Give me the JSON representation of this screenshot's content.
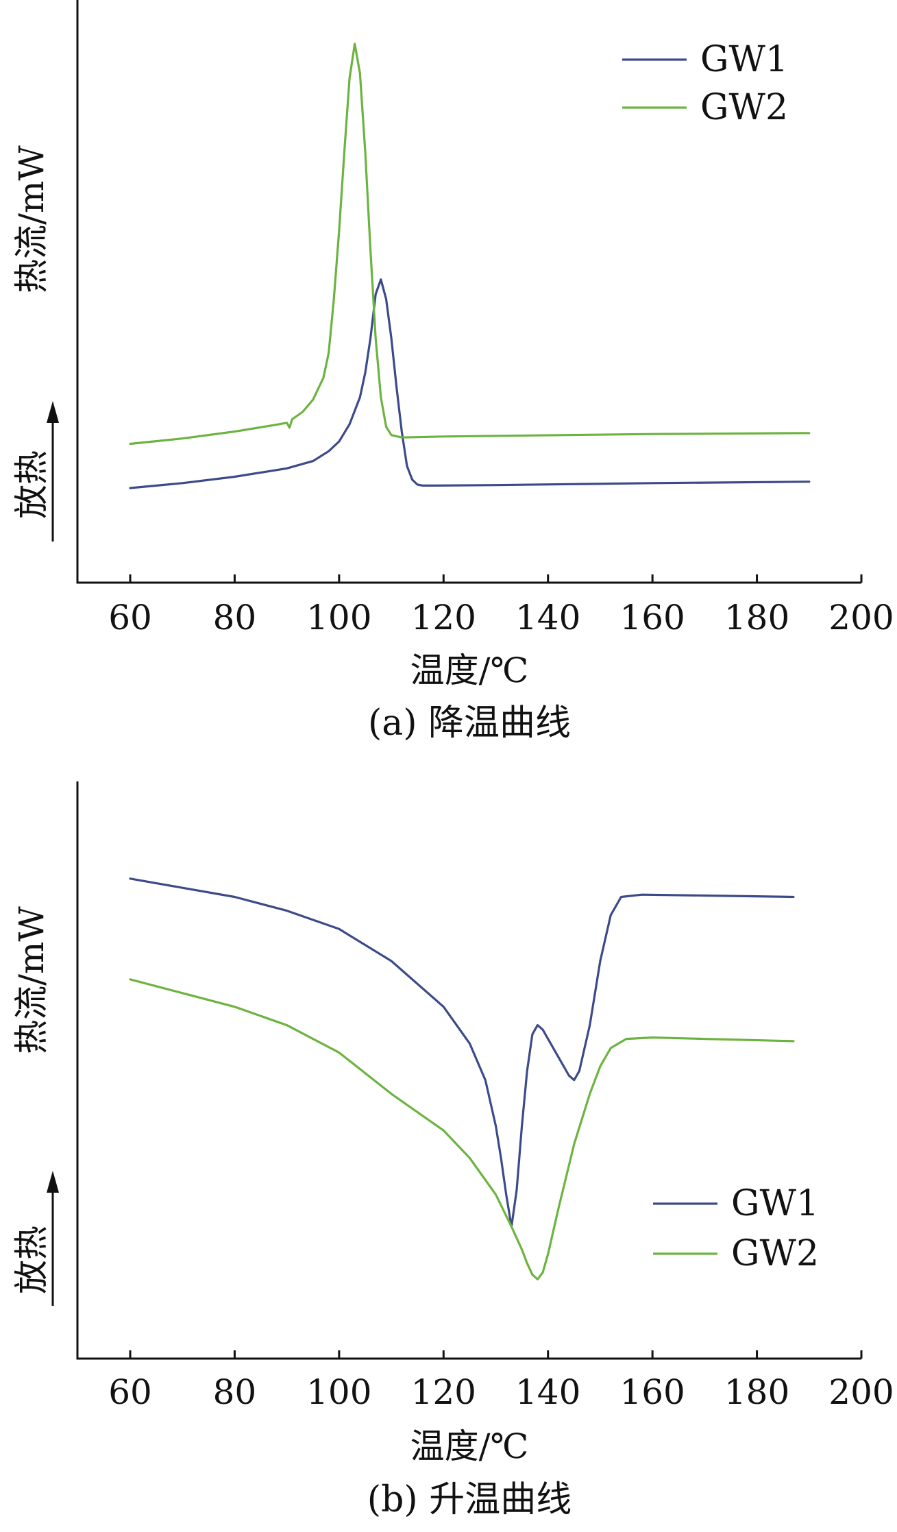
{
  "colors": {
    "GW1": "#3d4a8a",
    "GW2": "#6cb33f",
    "axis": "#111111"
  },
  "chart_data": [
    {
      "type": "line",
      "caption": "(a) 降温曲线",
      "xlabel": "温度/℃",
      "ylabel": "热流/mW",
      "ylabel_arrow": "放热",
      "xlim": [
        50,
        200
      ],
      "ylim": [
        0,
        100
      ],
      "xticks": [
        60,
        80,
        100,
        120,
        140,
        160,
        180,
        200
      ],
      "y_ticks_shown": false,
      "grid": false,
      "legend_position": "top-right",
      "series": [
        {
          "name": "GW1",
          "color": "GW1",
          "x": [
            60,
            70,
            80,
            90,
            95,
            98,
            100,
            102,
            104,
            105,
            106,
            107,
            108,
            109,
            110,
            111,
            112,
            113,
            114,
            115,
            116,
            118,
            130,
            160,
            190
          ],
          "y": [
            9.5,
            10.5,
            11.8,
            13.5,
            15,
            17,
            19,
            22.5,
            28,
            33,
            40,
            49,
            52,
            48,
            40,
            30,
            21,
            14,
            11.2,
            10.2,
            10,
            10,
            10.1,
            10.5,
            10.8
          ]
        },
        {
          "name": "GW2",
          "color": "GW2",
          "x": [
            60,
            70,
            80,
            88,
            90,
            90.5,
            91,
            93,
            95,
            97,
            98,
            99,
            100,
            101,
            102,
            103,
            104,
            105,
            106,
            107,
            108,
            109,
            110,
            112,
            120,
            160,
            190
          ],
          "y": [
            18.5,
            19.6,
            21,
            22.4,
            22.8,
            21.8,
            23.5,
            25,
            27.5,
            32,
            37,
            48,
            62,
            78,
            93,
            100,
            94,
            78,
            58,
            40,
            28,
            22,
            20.3,
            19.8,
            20,
            20.5,
            20.7
          ]
        }
      ]
    },
    {
      "type": "line",
      "caption": "(b) 升温曲线",
      "xlabel": "温度/℃",
      "ylabel": "热流/mW",
      "ylabel_arrow": "放热",
      "xlim": [
        50,
        200
      ],
      "ylim": [
        0,
        100
      ],
      "xticks": [
        60,
        80,
        100,
        120,
        140,
        160,
        180,
        200
      ],
      "y_ticks_shown": false,
      "grid": false,
      "legend_position": "bottom-right",
      "series": [
        {
          "name": "GW1",
          "color": "GW1",
          "x": [
            60,
            70,
            80,
            90,
            100,
            110,
            120,
            125,
            128,
            130,
            131,
            132,
            133,
            134,
            135,
            136,
            137,
            138,
            139,
            140,
            142,
            144,
            145,
            146,
            148,
            150,
            152,
            154,
            158,
            170,
            187
          ],
          "y": [
            90,
            88,
            86,
            83,
            79,
            72,
            62,
            54,
            46,
            36,
            29,
            21,
            14,
            22,
            36,
            48,
            56,
            58,
            57,
            55,
            51,
            47,
            46,
            48,
            58,
            72,
            82,
            86,
            86.5,
            86.3,
            86
          ]
        },
        {
          "name": "GW2",
          "color": "GW2",
          "x": [
            60,
            70,
            80,
            90,
            100,
            110,
            120,
            125,
            130,
            133,
            135,
            136,
            137,
            138,
            139,
            140,
            142,
            145,
            148,
            150,
            152,
            155,
            160,
            170,
            187
          ],
          "y": [
            68,
            65,
            62,
            58,
            52,
            43,
            35,
            29,
            21,
            14,
            9,
            6,
            3.5,
            2.5,
            4,
            8,
            18,
            32,
            43,
            49,
            53,
            55,
            55.3,
            55,
            54.5
          ]
        }
      ]
    }
  ]
}
